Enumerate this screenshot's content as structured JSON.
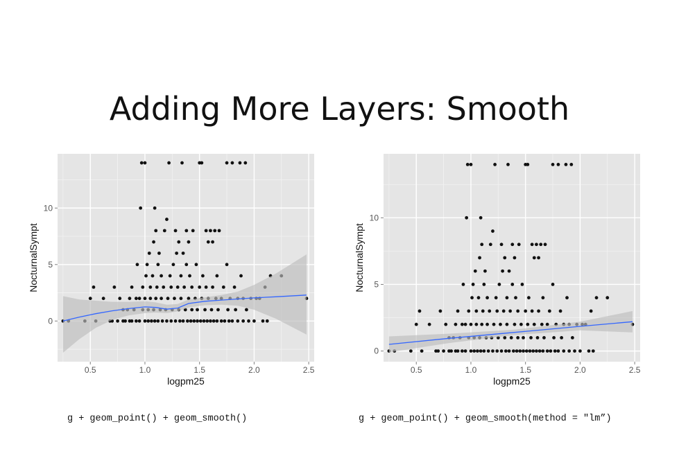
{
  "slide": {
    "title": "Adding More Layers: Smooth",
    "caption_left": "g + geom_point() + geom_smooth()",
    "caption_right": "g + geom_point() + geom_smooth(method = \"lm”)"
  },
  "colors": {
    "panel_bg": "#e5e5e5",
    "grid_major": "#ffffff",
    "grid_minor": "#f2f2f2",
    "point": "#111111",
    "smooth_line": "#3366ff",
    "ribbon": "#bdbdbd"
  },
  "chart_data": [
    {
      "type": "scatter",
      "xlabel": "logpm25",
      "ylabel": "NocturnalSympt",
      "xlim": [
        0.2,
        2.55
      ],
      "ylim": [
        -3.6,
        14.8
      ],
      "x_ticks": [
        0.5,
        1.0,
        1.5,
        2.0,
        2.5
      ],
      "x_tick_labels": [
        "0.5",
        "1.0",
        "1.5",
        "2.0",
        "2.5"
      ],
      "y_ticks": [
        0,
        5,
        10
      ],
      "y_tick_labels": [
        "0",
        "5",
        "10"
      ],
      "grid": true,
      "smooth": {
        "method": "loess",
        "x": [
          0.25,
          0.4,
          0.55,
          0.7,
          0.85,
          1.0,
          1.1,
          1.2,
          1.3,
          1.4,
          1.55,
          1.7,
          1.85,
          2.0,
          2.2,
          2.48
        ],
        "y": [
          0.0,
          0.35,
          0.65,
          0.9,
          1.1,
          1.25,
          1.2,
          1.05,
          1.15,
          1.55,
          1.75,
          1.85,
          1.95,
          2.05,
          2.15,
          2.3
        ],
        "lower": [
          -2.8,
          -1.6,
          -0.6,
          0.1,
          0.5,
          0.7,
          0.75,
          0.7,
          0.85,
          1.2,
          1.4,
          1.45,
          1.35,
          1.0,
          0.2,
          -1.2
        ],
        "upper": [
          2.2,
          1.9,
          1.8,
          1.7,
          1.7,
          1.75,
          1.65,
          1.45,
          1.5,
          1.9,
          2.1,
          2.3,
          2.6,
          3.2,
          4.2,
          5.9
        ]
      },
      "points": [
        [
          0.25,
          0
        ],
        [
          0.3,
          0
        ],
        [
          0.45,
          0
        ],
        [
          0.5,
          2
        ],
        [
          0.53,
          3
        ],
        [
          0.55,
          0
        ],
        [
          0.62,
          2
        ],
        [
          0.68,
          0
        ],
        [
          0.7,
          0
        ],
        [
          0.72,
          3
        ],
        [
          0.75,
          0
        ],
        [
          0.77,
          2
        ],
        [
          0.8,
          0
        ],
        [
          0.8,
          1
        ],
        [
          0.82,
          0
        ],
        [
          0.84,
          1
        ],
        [
          0.86,
          0
        ],
        [
          0.86,
          2
        ],
        [
          0.88,
          0
        ],
        [
          0.88,
          3
        ],
        [
          0.9,
          1
        ],
        [
          0.92,
          0
        ],
        [
          0.92,
          2
        ],
        [
          0.93,
          5
        ],
        [
          0.95,
          0
        ],
        [
          0.95,
          2
        ],
        [
          0.96,
          10
        ],
        [
          0.97,
          14
        ],
        [
          0.98,
          1
        ],
        [
          0.98,
          3
        ],
        [
          1.0,
          0
        ],
        [
          1.0,
          2
        ],
        [
          1.0,
          14
        ],
        [
          1.01,
          4
        ],
        [
          1.02,
          5
        ],
        [
          1.03,
          0
        ],
        [
          1.03,
          1
        ],
        [
          1.04,
          6
        ],
        [
          1.05,
          2
        ],
        [
          1.05,
          3
        ],
        [
          1.06,
          0
        ],
        [
          1.07,
          4
        ],
        [
          1.08,
          1
        ],
        [
          1.08,
          7
        ],
        [
          1.09,
          0
        ],
        [
          1.09,
          10
        ],
        [
          1.1,
          2
        ],
        [
          1.1,
          8
        ],
        [
          1.11,
          3
        ],
        [
          1.12,
          0
        ],
        [
          1.12,
          5
        ],
        [
          1.13,
          6
        ],
        [
          1.14,
          1
        ],
        [
          1.15,
          2
        ],
        [
          1.15,
          4
        ],
        [
          1.16,
          0
        ],
        [
          1.17,
          3
        ],
        [
          1.18,
          8
        ],
        [
          1.19,
          1
        ],
        [
          1.2,
          0
        ],
        [
          1.2,
          9
        ],
        [
          1.21,
          2
        ],
        [
          1.22,
          14
        ],
        [
          1.23,
          4
        ],
        [
          1.24,
          0
        ],
        [
          1.24,
          3
        ],
        [
          1.25,
          1
        ],
        [
          1.26,
          5
        ],
        [
          1.27,
          2
        ],
        [
          1.28,
          0
        ],
        [
          1.28,
          8
        ],
        [
          1.29,
          6
        ],
        [
          1.3,
          3
        ],
        [
          1.31,
          1
        ],
        [
          1.31,
          7
        ],
        [
          1.32,
          0
        ],
        [
          1.33,
          2
        ],
        [
          1.33,
          4
        ],
        [
          1.34,
          14
        ],
        [
          1.35,
          0
        ],
        [
          1.35,
          6
        ],
        [
          1.36,
          3
        ],
        [
          1.37,
          1
        ],
        [
          1.38,
          8
        ],
        [
          1.38,
          5
        ],
        [
          1.39,
          0
        ],
        [
          1.4,
          2
        ],
        [
          1.4,
          7
        ],
        [
          1.41,
          4
        ],
        [
          1.42,
          0
        ],
        [
          1.43,
          1
        ],
        [
          1.43,
          3
        ],
        [
          1.44,
          8
        ],
        [
          1.45,
          0
        ],
        [
          1.46,
          2
        ],
        [
          1.47,
          5
        ],
        [
          1.48,
          0
        ],
        [
          1.48,
          1
        ],
        [
          1.5,
          14
        ],
        [
          1.5,
          3
        ],
        [
          1.51,
          0
        ],
        [
          1.52,
          2
        ],
        [
          1.52,
          14
        ],
        [
          1.53,
          4
        ],
        [
          1.54,
          0
        ],
        [
          1.55,
          1
        ],
        [
          1.56,
          8
        ],
        [
          1.56,
          3
        ],
        [
          1.57,
          0
        ],
        [
          1.58,
          7
        ],
        [
          1.58,
          2
        ],
        [
          1.6,
          0
        ],
        [
          1.6,
          8
        ],
        [
          1.61,
          1
        ],
        [
          1.62,
          3
        ],
        [
          1.62,
          7
        ],
        [
          1.63,
          0
        ],
        [
          1.64,
          8
        ],
        [
          1.65,
          2
        ],
        [
          1.66,
          0
        ],
        [
          1.66,
          4
        ],
        [
          1.67,
          1
        ],
        [
          1.68,
          8
        ],
        [
          1.7,
          0
        ],
        [
          1.7,
          2
        ],
        [
          1.72,
          3
        ],
        [
          1.73,
          0
        ],
        [
          1.75,
          5
        ],
        [
          1.75,
          14
        ],
        [
          1.76,
          1
        ],
        [
          1.77,
          0
        ],
        [
          1.78,
          2
        ],
        [
          1.8,
          14
        ],
        [
          1.8,
          0
        ],
        [
          1.82,
          3
        ],
        [
          1.83,
          1
        ],
        [
          1.85,
          0
        ],
        [
          1.85,
          2
        ],
        [
          1.87,
          14
        ],
        [
          1.88,
          4
        ],
        [
          1.9,
          0
        ],
        [
          1.9,
          2
        ],
        [
          1.92,
          14
        ],
        [
          1.93,
          1
        ],
        [
          1.95,
          0
        ],
        [
          1.97,
          2
        ],
        [
          2.0,
          0
        ],
        [
          2.02,
          2
        ],
        [
          2.05,
          2
        ],
        [
          2.08,
          0
        ],
        [
          2.1,
          3
        ],
        [
          2.12,
          0
        ],
        [
          2.15,
          4
        ],
        [
          2.25,
          4
        ],
        [
          2.48,
          2
        ]
      ]
    },
    {
      "type": "scatter",
      "xlabel": "logpm25",
      "ylabel": "NocturnalSympt",
      "xlim": [
        0.2,
        2.55
      ],
      "ylim": [
        -0.8,
        14.8
      ],
      "x_ticks": [
        0.5,
        1.0,
        1.5,
        2.0,
        2.5
      ],
      "x_tick_labels": [
        "0.5",
        "1.0",
        "1.5",
        "2.0",
        "2.5"
      ],
      "y_ticks": [
        0,
        5,
        10
      ],
      "y_tick_labels": [
        "0",
        "5",
        "10"
      ],
      "grid": true,
      "smooth": {
        "method": "lm",
        "x": [
          0.25,
          0.8,
          1.4,
          2.0,
          2.48
        ],
        "y": [
          0.5,
          0.95,
          1.4,
          1.85,
          2.2
        ],
        "lower": [
          -0.1,
          0.6,
          1.2,
          1.55,
          1.4
        ],
        "upper": [
          1.1,
          1.3,
          1.6,
          2.2,
          3.0
        ]
      },
      "points": [
        [
          0.25,
          0
        ],
        [
          0.3,
          0
        ],
        [
          0.45,
          0
        ],
        [
          0.5,
          2
        ],
        [
          0.53,
          3
        ],
        [
          0.55,
          0
        ],
        [
          0.62,
          2
        ],
        [
          0.68,
          0
        ],
        [
          0.7,
          0
        ],
        [
          0.72,
          3
        ],
        [
          0.75,
          0
        ],
        [
          0.77,
          2
        ],
        [
          0.8,
          0
        ],
        [
          0.8,
          1
        ],
        [
          0.82,
          0
        ],
        [
          0.84,
          1
        ],
        [
          0.86,
          0
        ],
        [
          0.86,
          2
        ],
        [
          0.88,
          0
        ],
        [
          0.88,
          3
        ],
        [
          0.9,
          1
        ],
        [
          0.92,
          0
        ],
        [
          0.92,
          2
        ],
        [
          0.93,
          5
        ],
        [
          0.95,
          0
        ],
        [
          0.95,
          2
        ],
        [
          0.96,
          10
        ],
        [
          0.97,
          14
        ],
        [
          0.98,
          1
        ],
        [
          0.98,
          3
        ],
        [
          1.0,
          0
        ],
        [
          1.0,
          2
        ],
        [
          1.0,
          14
        ],
        [
          1.01,
          4
        ],
        [
          1.02,
          5
        ],
        [
          1.03,
          0
        ],
        [
          1.03,
          1
        ],
        [
          1.04,
          6
        ],
        [
          1.05,
          2
        ],
        [
          1.05,
          3
        ],
        [
          1.06,
          0
        ],
        [
          1.07,
          4
        ],
        [
          1.08,
          1
        ],
        [
          1.08,
          7
        ],
        [
          1.09,
          0
        ],
        [
          1.09,
          10
        ],
        [
          1.1,
          2
        ],
        [
          1.1,
          8
        ],
        [
          1.11,
          3
        ],
        [
          1.12,
          0
        ],
        [
          1.12,
          5
        ],
        [
          1.13,
          6
        ],
        [
          1.14,
          1
        ],
        [
          1.15,
          2
        ],
        [
          1.15,
          4
        ],
        [
          1.16,
          0
        ],
        [
          1.17,
          3
        ],
        [
          1.18,
          8
        ],
        [
          1.19,
          1
        ],
        [
          1.2,
          0
        ],
        [
          1.2,
          9
        ],
        [
          1.21,
          2
        ],
        [
          1.22,
          14
        ],
        [
          1.23,
          4
        ],
        [
          1.24,
          0
        ],
        [
          1.24,
          3
        ],
        [
          1.25,
          1
        ],
        [
          1.26,
          5
        ],
        [
          1.27,
          2
        ],
        [
          1.28,
          0
        ],
        [
          1.28,
          8
        ],
        [
          1.29,
          6
        ],
        [
          1.3,
          3
        ],
        [
          1.31,
          1
        ],
        [
          1.31,
          7
        ],
        [
          1.32,
          0
        ],
        [
          1.33,
          2
        ],
        [
          1.33,
          4
        ],
        [
          1.34,
          14
        ],
        [
          1.35,
          0
        ],
        [
          1.35,
          6
        ],
        [
          1.36,
          3
        ],
        [
          1.37,
          1
        ],
        [
          1.38,
          8
        ],
        [
          1.38,
          5
        ],
        [
          1.39,
          0
        ],
        [
          1.4,
          2
        ],
        [
          1.4,
          7
        ],
        [
          1.41,
          4
        ],
        [
          1.42,
          0
        ],
        [
          1.43,
          1
        ],
        [
          1.43,
          3
        ],
        [
          1.44,
          8
        ],
        [
          1.45,
          0
        ],
        [
          1.46,
          2
        ],
        [
          1.47,
          5
        ],
        [
          1.48,
          0
        ],
        [
          1.48,
          1
        ],
        [
          1.5,
          14
        ],
        [
          1.5,
          3
        ],
        [
          1.51,
          0
        ],
        [
          1.52,
          2
        ],
        [
          1.52,
          14
        ],
        [
          1.53,
          4
        ],
        [
          1.54,
          0
        ],
        [
          1.55,
          1
        ],
        [
          1.56,
          8
        ],
        [
          1.56,
          3
        ],
        [
          1.57,
          0
        ],
        [
          1.58,
          7
        ],
        [
          1.58,
          2
        ],
        [
          1.6,
          0
        ],
        [
          1.6,
          8
        ],
        [
          1.61,
          1
        ],
        [
          1.62,
          3
        ],
        [
          1.62,
          7
        ],
        [
          1.63,
          0
        ],
        [
          1.64,
          8
        ],
        [
          1.65,
          2
        ],
        [
          1.66,
          0
        ],
        [
          1.66,
          4
        ],
        [
          1.67,
          1
        ],
        [
          1.68,
          8
        ],
        [
          1.7,
          0
        ],
        [
          1.7,
          2
        ],
        [
          1.72,
          3
        ],
        [
          1.73,
          0
        ],
        [
          1.75,
          5
        ],
        [
          1.75,
          14
        ],
        [
          1.76,
          1
        ],
        [
          1.77,
          0
        ],
        [
          1.78,
          2
        ],
        [
          1.8,
          14
        ],
        [
          1.8,
          0
        ],
        [
          1.82,
          3
        ],
        [
          1.83,
          1
        ],
        [
          1.85,
          0
        ],
        [
          1.85,
          2
        ],
        [
          1.87,
          14
        ],
        [
          1.88,
          4
        ],
        [
          1.9,
          0
        ],
        [
          1.9,
          2
        ],
        [
          1.92,
          14
        ],
        [
          1.93,
          1
        ],
        [
          1.95,
          0
        ],
        [
          1.97,
          2
        ],
        [
          2.0,
          0
        ],
        [
          2.02,
          2
        ],
        [
          2.05,
          2
        ],
        [
          2.08,
          0
        ],
        [
          2.1,
          3
        ],
        [
          2.12,
          0
        ],
        [
          2.15,
          4
        ],
        [
          2.25,
          4
        ],
        [
          2.48,
          2
        ]
      ]
    }
  ]
}
